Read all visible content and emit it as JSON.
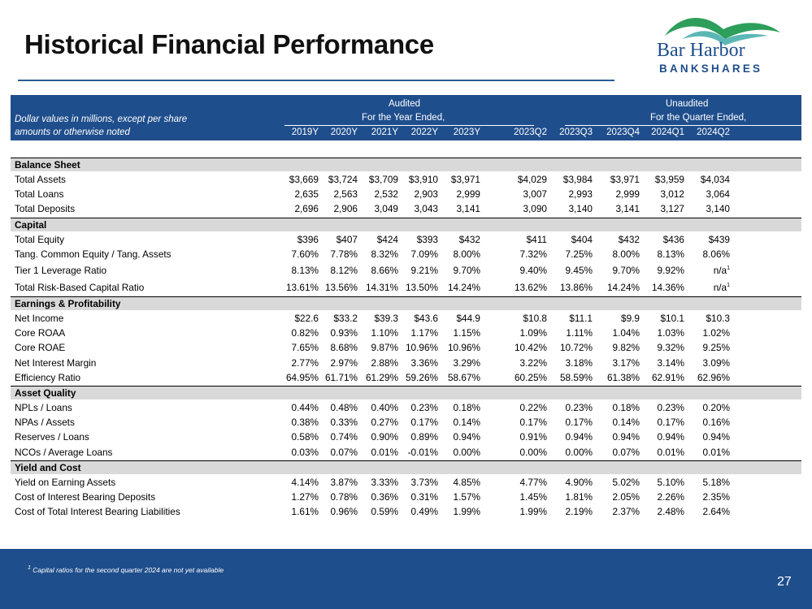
{
  "title": "Historical Financial Performance",
  "logo": {
    "line1": "Bar Harbor",
    "line2": "BANKSHARES"
  },
  "header": {
    "note_line1": "Dollar values in millions, except per share",
    "note_line2": "amounts or otherwise noted",
    "audited": "Audited",
    "audited_sub": "For the Year Ended,",
    "unaudited": "Unaudited",
    "unaudited_sub": "For the Quarter Ended,",
    "columns": [
      "2019Y",
      "2020Y",
      "2021Y",
      "2022Y",
      "2023Y",
      "2023Q2",
      "2023Q3",
      "2023Q4",
      "2024Q1",
      "2024Q2"
    ]
  },
  "rows": [
    {
      "type": "section",
      "label": "Balance Sheet"
    },
    {
      "type": "data",
      "label": "Total Assets",
      "values": [
        "$3,669",
        "$3,724",
        "$3,709",
        "$3,910",
        "$3,971",
        "$4,029",
        "$3,984",
        "$3,971",
        "$3,959",
        "$4,034"
      ]
    },
    {
      "type": "data",
      "label": "Total Loans",
      "values": [
        "2,635",
        "2,563",
        "2,532",
        "2,903",
        "2,999",
        "3,007",
        "2,993",
        "2,999",
        "3,012",
        "3,064"
      ]
    },
    {
      "type": "data",
      "label": "Total Deposits",
      "values": [
        "2,696",
        "2,906",
        "3,049",
        "3,043",
        "3,141",
        "3,090",
        "3,140",
        "3,141",
        "3,127",
        "3,140"
      ]
    },
    {
      "type": "section",
      "label": "Capital"
    },
    {
      "type": "data",
      "label": "Total Equity",
      "values": [
        "$396",
        "$407",
        "$424",
        "$393",
        "$432",
        "$411",
        "$404",
        "$432",
        "$436",
        "$439"
      ]
    },
    {
      "type": "data",
      "label": "Tang. Common Equity / Tang. Assets",
      "values": [
        "7.60%",
        "7.78%",
        "8.32%",
        "7.09%",
        "8.00%",
        "7.32%",
        "7.25%",
        "8.00%",
        "8.13%",
        "8.06%"
      ]
    },
    {
      "type": "data",
      "label": "Tier 1 Leverage Ratio",
      "values": [
        "8.13%",
        "8.12%",
        "8.66%",
        "9.21%",
        "9.70%",
        "9.40%",
        "9.45%",
        "9.70%",
        "9.92%",
        "n/a"
      ],
      "last_sup": "1",
      "tall": true
    },
    {
      "type": "data",
      "label": "Total Risk-Based Capital Ratio",
      "values": [
        "13.61%",
        "13.56%",
        "14.31%",
        "13.50%",
        "14.24%",
        "13.62%",
        "13.86%",
        "14.24%",
        "14.36%",
        "n/a"
      ],
      "last_sup": "1",
      "tall": true
    },
    {
      "type": "section",
      "label": "Earnings & Profitability"
    },
    {
      "type": "data",
      "label": "Net Income",
      "values": [
        "$22.6",
        "$33.2",
        "$39.3",
        "$43.6",
        "$44.9",
        "$10.8",
        "$11.1",
        "$9.9",
        "$10.1",
        "$10.3"
      ]
    },
    {
      "type": "data",
      "label": "Core ROAA",
      "values": [
        "0.82%",
        "0.93%",
        "1.10%",
        "1.17%",
        "1.15%",
        "1.09%",
        "1.11%",
        "1.04%",
        "1.03%",
        "1.02%"
      ]
    },
    {
      "type": "data",
      "label": "Core ROAE",
      "values": [
        "7.65%",
        "8.68%",
        "9.87%",
        "10.96%",
        "10.96%",
        "10.42%",
        "10.72%",
        "9.82%",
        "9.32%",
        "9.25%"
      ]
    },
    {
      "type": "data",
      "label": "Net Interest Margin",
      "values": [
        "2.77%",
        "2.97%",
        "2.88%",
        "3.36%",
        "3.29%",
        "3.22%",
        "3.18%",
        "3.17%",
        "3.14%",
        "3.09%"
      ]
    },
    {
      "type": "data",
      "label": "Efficiency Ratio",
      "values": [
        "64.95%",
        "61.71%",
        "61.29%",
        "59.26%",
        "58.67%",
        "60.25%",
        "58.59%",
        "61.38%",
        "62.91%",
        "62.96%"
      ]
    },
    {
      "type": "section",
      "label": "Asset Quality"
    },
    {
      "type": "data",
      "label": "NPLs / Loans",
      "values": [
        "0.44%",
        "0.48%",
        "0.40%",
        "0.23%",
        "0.18%",
        "0.22%",
        "0.23%",
        "0.18%",
        "0.23%",
        "0.20%"
      ]
    },
    {
      "type": "data",
      "label": "NPAs / Assets",
      "values": [
        "0.38%",
        "0.33%",
        "0.27%",
        "0.17%",
        "0.14%",
        "0.17%",
        "0.17%",
        "0.14%",
        "0.17%",
        "0.16%"
      ]
    },
    {
      "type": "data",
      "label": "Reserves / Loans",
      "values": [
        "0.58%",
        "0.74%",
        "0.90%",
        "0.89%",
        "0.94%",
        "0.91%",
        "0.94%",
        "0.94%",
        "0.94%",
        "0.94%"
      ]
    },
    {
      "type": "data",
      "label": "NCOs / Average Loans",
      "values": [
        "0.03%",
        "0.07%",
        "0.01%",
        "-0.01%",
        "0.00%",
        "0.00%",
        "0.00%",
        "0.07%",
        "0.01%",
        "0.01%"
      ]
    },
    {
      "type": "section",
      "label": "Yield and Cost"
    },
    {
      "type": "data",
      "label": "Yield on Earning Assets",
      "values": [
        "4.14%",
        "3.87%",
        "3.33%",
        "3.73%",
        "4.85%",
        "4.77%",
        "4.90%",
        "5.02%",
        "5.10%",
        "5.18%"
      ]
    },
    {
      "type": "data",
      "label": "Cost of Interest Bearing Deposits",
      "values": [
        "1.27%",
        "0.78%",
        "0.36%",
        "0.31%",
        "1.57%",
        "1.45%",
        "1.81%",
        "2.05%",
        "2.26%",
        "2.35%"
      ]
    },
    {
      "type": "data",
      "label": "Cost of Total Interest Bearing Liabilities",
      "values": [
        "1.61%",
        "0.96%",
        "0.59%",
        "0.49%",
        "1.99%",
        "1.99%",
        "2.19%",
        "2.37%",
        "2.48%",
        "2.64%"
      ]
    }
  ],
  "footnote": {
    "sup": "1",
    "text": " Capital ratios for the second quarter 2024 are not yet available"
  },
  "page_number": "27",
  "colors": {
    "brand_blue": "#1f4e8c",
    "section_gray": "#d9d9d9",
    "logo_green": "#2e9e5b",
    "logo_teal": "#5bb7b4"
  }
}
